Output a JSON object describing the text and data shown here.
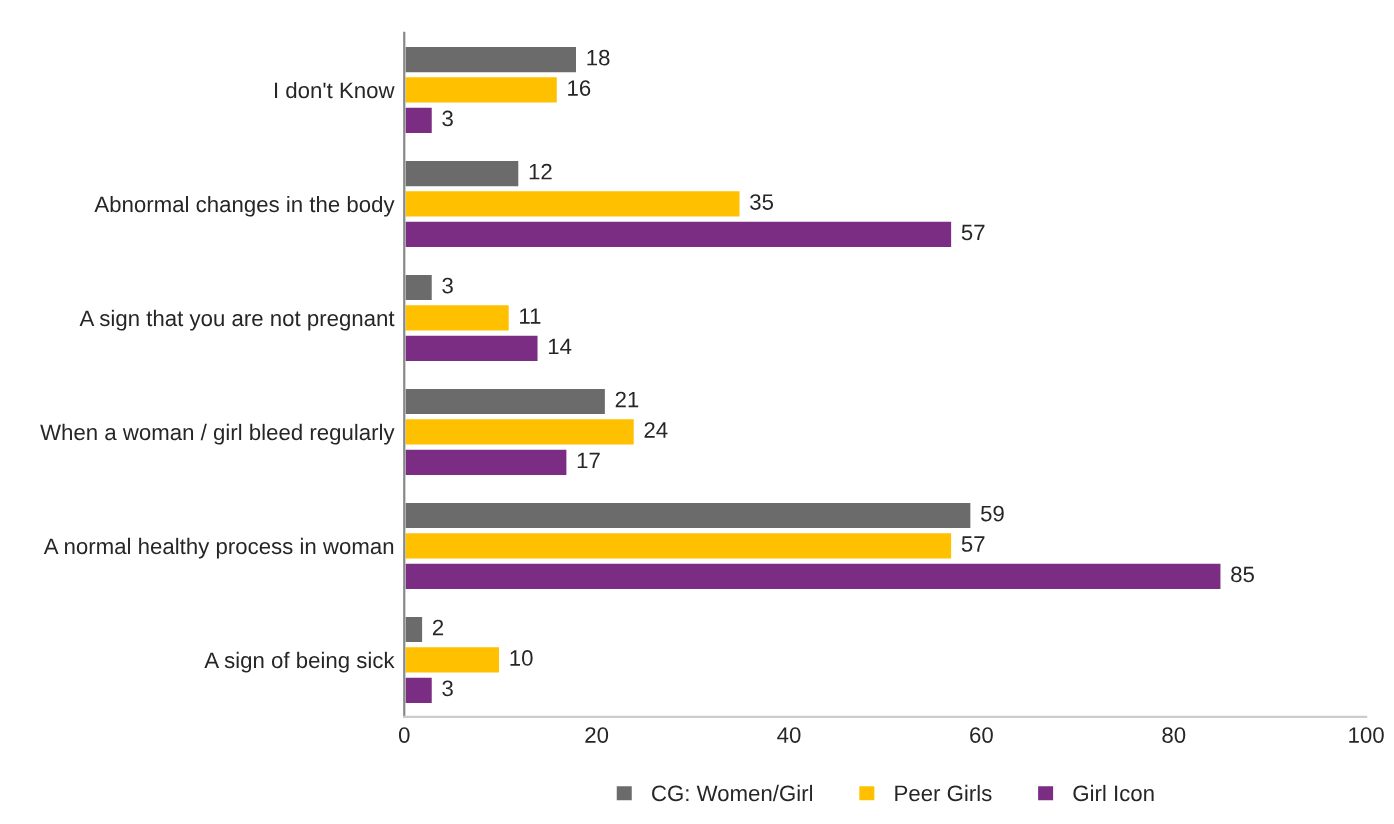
{
  "chart_data": {
    "type": "bar",
    "orientation": "horizontal",
    "categories": [
      "I don't Know",
      "Abnormal changes in the body",
      "A sign that you are not pregnant",
      "When a woman / girl bleed regularly",
      "A normal healthy process in woman",
      "A sign of being sick"
    ],
    "series": [
      {
        "name": "CG: Women/Girl",
        "color": "#6b6b6b",
        "values": [
          18,
          12,
          3,
          21,
          59,
          2
        ]
      },
      {
        "name": "Peer Girls",
        "color": "#ffc000",
        "values": [
          16,
          35,
          11,
          24,
          57,
          10
        ]
      },
      {
        "name": "Girl Icon",
        "color": "#7b2c83",
        "values": [
          3,
          57,
          14,
          17,
          85,
          3
        ]
      }
    ],
    "xlim": [
      0,
      100
    ],
    "xticks": [
      0,
      20,
      40,
      60,
      80,
      100
    ],
    "grid": false,
    "legend": "bottom",
    "data_labels": true
  }
}
